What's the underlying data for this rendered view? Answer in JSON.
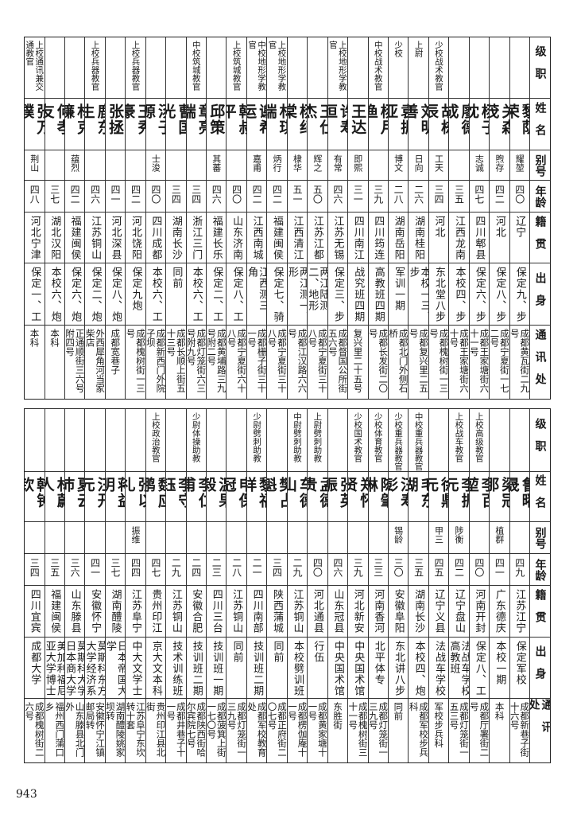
{
  "header": {
    "rank": "级职",
    "name": "姓名",
    "alias": "别号",
    "age": "年龄",
    "origin": "籍贯",
    "background": "出身",
    "address": "通讯处"
  },
  "top": [
    {
      "rank": "",
      "name": "黎荫荣",
      "alias": "耀堃",
      "age": "四〇",
      "origin": "辽宁",
      "background": "保定九、步",
      "address": "成都黄瓦街二九号"
    },
    {
      "rank": "",
      "name": "关森茂",
      "alias": "煦存",
      "age": "四二",
      "origin": "河北",
      "background": "保定八、步",
      "address": "成都宁夏街一七二号"
    },
    {
      "rank": "",
      "name": "杨子忱",
      "alias": "志诚",
      "age": "四七",
      "origin": "四川郫县",
      "background": "保定六、步",
      "address": "成都王家塘街六十一号"
    },
    {
      "rank": "",
      "name": "廖德成",
      "alias": "",
      "age": "三五",
      "origin": "江西龙南",
      "background": "本校四、步",
      "address": "成都王家塘街六十号"
    },
    {
      "rank": "少校战术教官",
      "name": "胡栋辰",
      "alias": "工天",
      "age": "三四",
      "origin": "河北",
      "background": "东北堂八步",
      "address": "成都槐树街一三号"
    },
    {
      "rank": "上尉",
      "name": "刘明善",
      "alias": "日向",
      "age": "二六",
      "origin": "湖南桂阳",
      "background": "本校一三、步",
      "address": "成都复兴里二五号"
    },
    {
      "rank": "少校",
      "name": "袁振亚",
      "alias": "博文",
      "age": "二八",
      "origin": "湖南岳阳",
      "background": "军训一期",
      "address": "成都北门外侧石桥"
    },
    {
      "rank": "中校战术教官",
      "name": "杨月渔",
      "alias": "",
      "age": "三九",
      "origin": "四川筠连",
      "background": "高教班四期",
      "address": "成都长发街二〇号"
    },
    {
      "rank": "",
      "name": "王达",
      "alias": "即熙",
      "age": "三一",
      "origin": "四川南江",
      "background": "战究班四期",
      "address": "复兴里二十五号"
    },
    {
      "rank": "上校地形学教官",
      "name": "许寿恒",
      "alias": "有常",
      "age": "四六",
      "origin": "江苏无锡",
      "background": "保定三、步",
      "address": "成都督国公所街五六号"
    },
    {
      "rank": "",
      "name": "王仕杰",
      "alias": "辉之",
      "age": "五〇",
      "origin": "江苏江都",
      "background": "两江陆测二、地形",
      "address": "成都宁夏街三十八号"
    },
    {
      "rank": "",
      "name": "杨纪棠",
      "alias": "棣华",
      "age": "五一",
      "origin": "江西清江",
      "background": "两江测一、形",
      "address": "成都江汉路六六号"
    },
    {
      "rank": "上校地形学教官",
      "name": "林琪瑞",
      "alias": "炳行",
      "age": "四二",
      "origin": "福建闽侯",
      "background": "保定七、骑",
      "address": "成都宁夏街三十八号"
    },
    {
      "rank": "中校地形学教官",
      "name": "谢希运",
      "alias": "嘉甫",
      "age": "四二",
      "origin": "江西南城",
      "background": "江西测三、角",
      "address": "成都栅子街三十一号"
    },
    {
      "rank": "上校筑城教官",
      "name": "韩叔平",
      "alias": "",
      "age": "四〇",
      "origin": "山东济南",
      "background": "保定八、工",
      "address": "成都宁夏街六十八号"
    },
    {
      "rank": "",
      "name": "邱策",
      "alias": "其蕃",
      "age": "四六",
      "origin": "福建长乐",
      "background": "保定二、工",
      "address": "成都黄埔路三九号附二号"
    },
    {
      "rank": "中校筑城教官",
      "name": "章亮端",
      "alias": "",
      "age": "三四",
      "origin": "浙江三门",
      "background": "本校六、工",
      "address": "成都灯笼街六三号附九号"
    },
    {
      "rank": "",
      "name": "曹国光",
      "alias": "",
      "age": "三四",
      "origin": "湖南长沙",
      "background": "同前",
      "address": "成都长顺上街五十三号"
    },
    {
      "rank": "",
      "name": "汤子源",
      "alias": "士浚",
      "age": "四〇",
      "origin": "四川成都",
      "background": "本校六、工",
      "address": "成都新西门外院子坝"
    },
    {
      "rank": "上校兵器教官",
      "name": "王秀豪",
      "alias": "",
      "age": "四二",
      "origin": "河北饶阳",
      "background": "保定九炮",
      "address": "成都槐树街一三号"
    },
    {
      "rank": "",
      "name": "张拯",
      "alias": "",
      "age": "四一",
      "origin": "河北深县",
      "background": "保定八、炮",
      "address": "成都宽巷子"
    },
    {
      "rank": "上校兵器教官",
      "name": "鹿东生",
      "alias": "",
      "age": "四六",
      "origin": "江苏铜山",
      "background": "保定二、炮",
      "address": "外西犀角河当家柴店"
    },
    {
      "rank": "",
      "name": "林克濂",
      "alias": "蕴烈",
      "age": "四二",
      "origin": "福建闽侯",
      "background": "保定六、炮",
      "address": "正通顺街三六号附四号"
    },
    {
      "rank": "",
      "name": "何孝友",
      "alias": "",
      "age": "三七",
      "origin": "湖北汉阳",
      "background": "本校六、炮",
      "address": "本科"
    },
    {
      "rank": "上校通讯兼交通教官",
      "name": "张万璞",
      "alias": "荆山",
      "age": "四八",
      "origin": "河北宁津",
      "background": "保定一、工",
      "address": "本科"
    }
  ],
  "bottom": [
    {
      "rank": "",
      "name": "鲁曜晟",
      "alias": "",
      "age": "四九",
      "origin": "江苏江宁",
      "background": "保定军校",
      "address": "成都新巷子街十六号"
    },
    {
      "rank": "",
      "name": "梁冠那",
      "alias": "植群",
      "age": "四一",
      "origin": "广东德庆",
      "background": "本校一期",
      "address": "本科"
    },
    {
      "rank": "上校高级教官",
      "name": "李百堃",
      "alias": "",
      "age": "四〇",
      "origin": "河南开封",
      "background": "保定八、工",
      "address": "成都厅署街二号"
    },
    {
      "rank": "上校战车教官",
      "name": "李振元",
      "alias": "陟衡",
      "age": "四二",
      "origin": "辽宁盘山",
      "background": "法战车学校高教班",
      "address": "成都灯笼街一五三号"
    },
    {
      "rank": "",
      "name": "徐鼎元",
      "alias": "甲三",
      "age": "四五",
      "origin": "辽宁义县",
      "background": "法战车学校",
      "address": "军校步兵科"
    },
    {
      "rank": "中校重兵器教官",
      "name": "毛东湖",
      "alias": "",
      "age": "三五",
      "origin": "湖南长沙",
      "background": "本校四、炮",
      "address": "成都军校步兵科"
    },
    {
      "rank": "少校重兵器教官",
      "name": "汪寿彭",
      "alias": "锡龄",
      "age": "三〇",
      "origin": "安徽阜阳",
      "background": "东北讲八步",
      "address": "同前"
    },
    {
      "rank": "少校体育教官",
      "name": "陈肇琳",
      "alias": "",
      "age": "三三",
      "origin": "河南香河",
      "background": "北平体专",
      "address": "成都灯笼街一三九号"
    },
    {
      "rank": "少校国术教官",
      "name": "郑怀贤",
      "alias": "",
      "age": "三九",
      "origin": "河北新安",
      "background": "中央国术馆",
      "address": "成都槐树街三十一号"
    },
    {
      "rank": "",
      "name": "张英振",
      "alias": "",
      "age": "四六",
      "origin": "山东冠县",
      "background": "中央国术馆",
      "address": "东胜街"
    },
    {
      "rank": "上尉劈刺助教",
      "name": "孟德贵",
      "alias": "",
      "age": "四〇",
      "origin": "河北通县",
      "background": "行伍",
      "address": "成都黄家塘十一号"
    },
    {
      "rank": "中尉劈刺助教",
      "name": "车德山",
      "alias": "",
      "age": "二九",
      "origin": "江苏铜山",
      "background": "本校劈训班",
      "address": "成都楞伽庵十一号"
    },
    {
      "rank": "",
      "name": "樊占魁",
      "alias": "",
      "age": "三四",
      "origin": "陕西蒲城",
      "background": "同前",
      "address": "成都正府街二〇七号"
    },
    {
      "rank": "少尉劈刺助教",
      "name": "黎福祥",
      "alias": "",
      "age": "二一",
      "origin": "四川南部",
      "background": "技训班二期",
      "address": "成都军校教育处"
    },
    {
      "rank": "",
      "name": "申保冠",
      "alias": "",
      "age": "二八",
      "origin": "江苏铜山",
      "background": "同前",
      "address": "成都灯笼街一三九号"
    },
    {
      "rank": "",
      "name": "温果毅",
      "alias": "",
      "age": "二三",
      "origin": "四川三台",
      "background": "技训班一期",
      "address": "成都菠箕上街一七〇号"
    },
    {
      "rank": "少尉体操助教",
      "name": "李仁甫",
      "alias": "",
      "age": "二四",
      "origin": "安徽合肥",
      "background": "技训班二期",
      "address": "成都陕西街哈尔宾院七号"
    },
    {
      "rank": "",
      "name": "李守钰",
      "alias": "",
      "age": "二九",
      "origin": "江苏铜山",
      "background": "技术训练班",
      "address": "成都井巷子十一号"
    },
    {
      "rank": "上校政治教官",
      "name": "魏应鹏",
      "alias": "",
      "age": "四七",
      "origin": "贵州印江",
      "background": "京大文本科",
      "address": "贵州印江县北街"
    },
    {
      "rank": "",
      "name": "张以礼",
      "alias": "振维",
      "age": "四四",
      "origin": "江苏阜宁",
      "background": "中大文学士",
      "address": "江苏阜宁东坎转十套"
    },
    {
      "rank": "",
      "name": "蒋益明",
      "alias": "",
      "age": "三七",
      "origin": "湖南醴陵",
      "background": "日本帝国大学",
      "address": "湖南醴陵姚家坝转"
    },
    {
      "rank": "",
      "name": "汪开元",
      "alias": "",
      "age": "四一",
      "origin": "安徽怀宁",
      "background": "莫斯科东方大学经济系",
      "address": "安徽怀宁江镇邮局转"
    },
    {
      "rank": "",
      "name": "夏云沛",
      "alias": "",
      "age": "三六",
      "origin": "山东滕县",
      "background": "莫斯科大学日本商大学",
      "address": "山东滕县北门外"
    },
    {
      "rank": "",
      "name": "林蔚人",
      "alias": "",
      "age": "三五",
      "origin": "福建闽侯",
      "background": "美加利福尼亚大学博士",
      "address": "福州西门蒲口乡"
    },
    {
      "rank": "",
      "name": "韩钟钦",
      "alias": "",
      "age": "三四",
      "origin": "四川宜宾",
      "background": "成都大学",
      "address": "成都槐树街二六号"
    }
  ],
  "page_number": "943"
}
